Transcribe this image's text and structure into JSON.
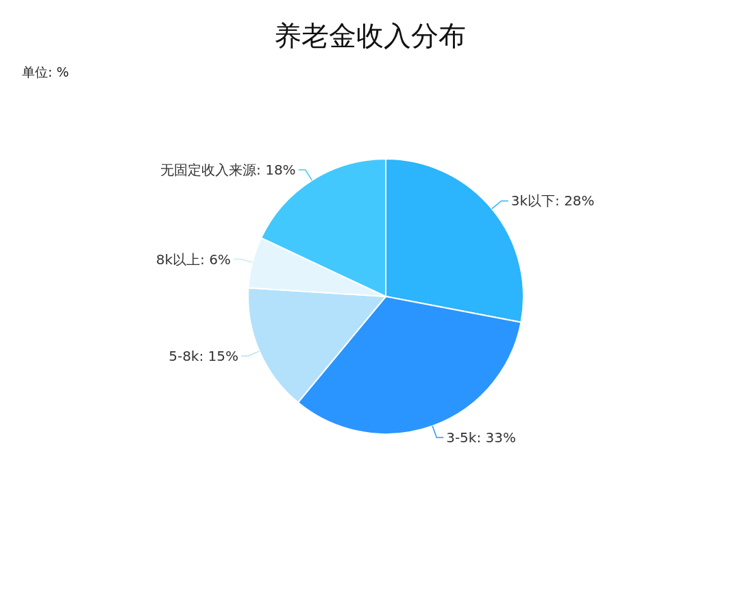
{
  "chart_data": {
    "type": "pie",
    "title": "养老金收入分布",
    "subtitle": "单位: %",
    "categories": [
      "3k以下",
      "3-5k",
      "5-8k",
      "8k以上",
      "无固定收入来源"
    ],
    "values": [
      28,
      33,
      15,
      6,
      18
    ],
    "value_labels": [
      "28%",
      "33%",
      "15%",
      "6%",
      "18%"
    ],
    "colors": [
      "#2cb4fc",
      "#2a95fe",
      "#b3e1fb",
      "#e4f5fd",
      "#42c8fd"
    ]
  }
}
